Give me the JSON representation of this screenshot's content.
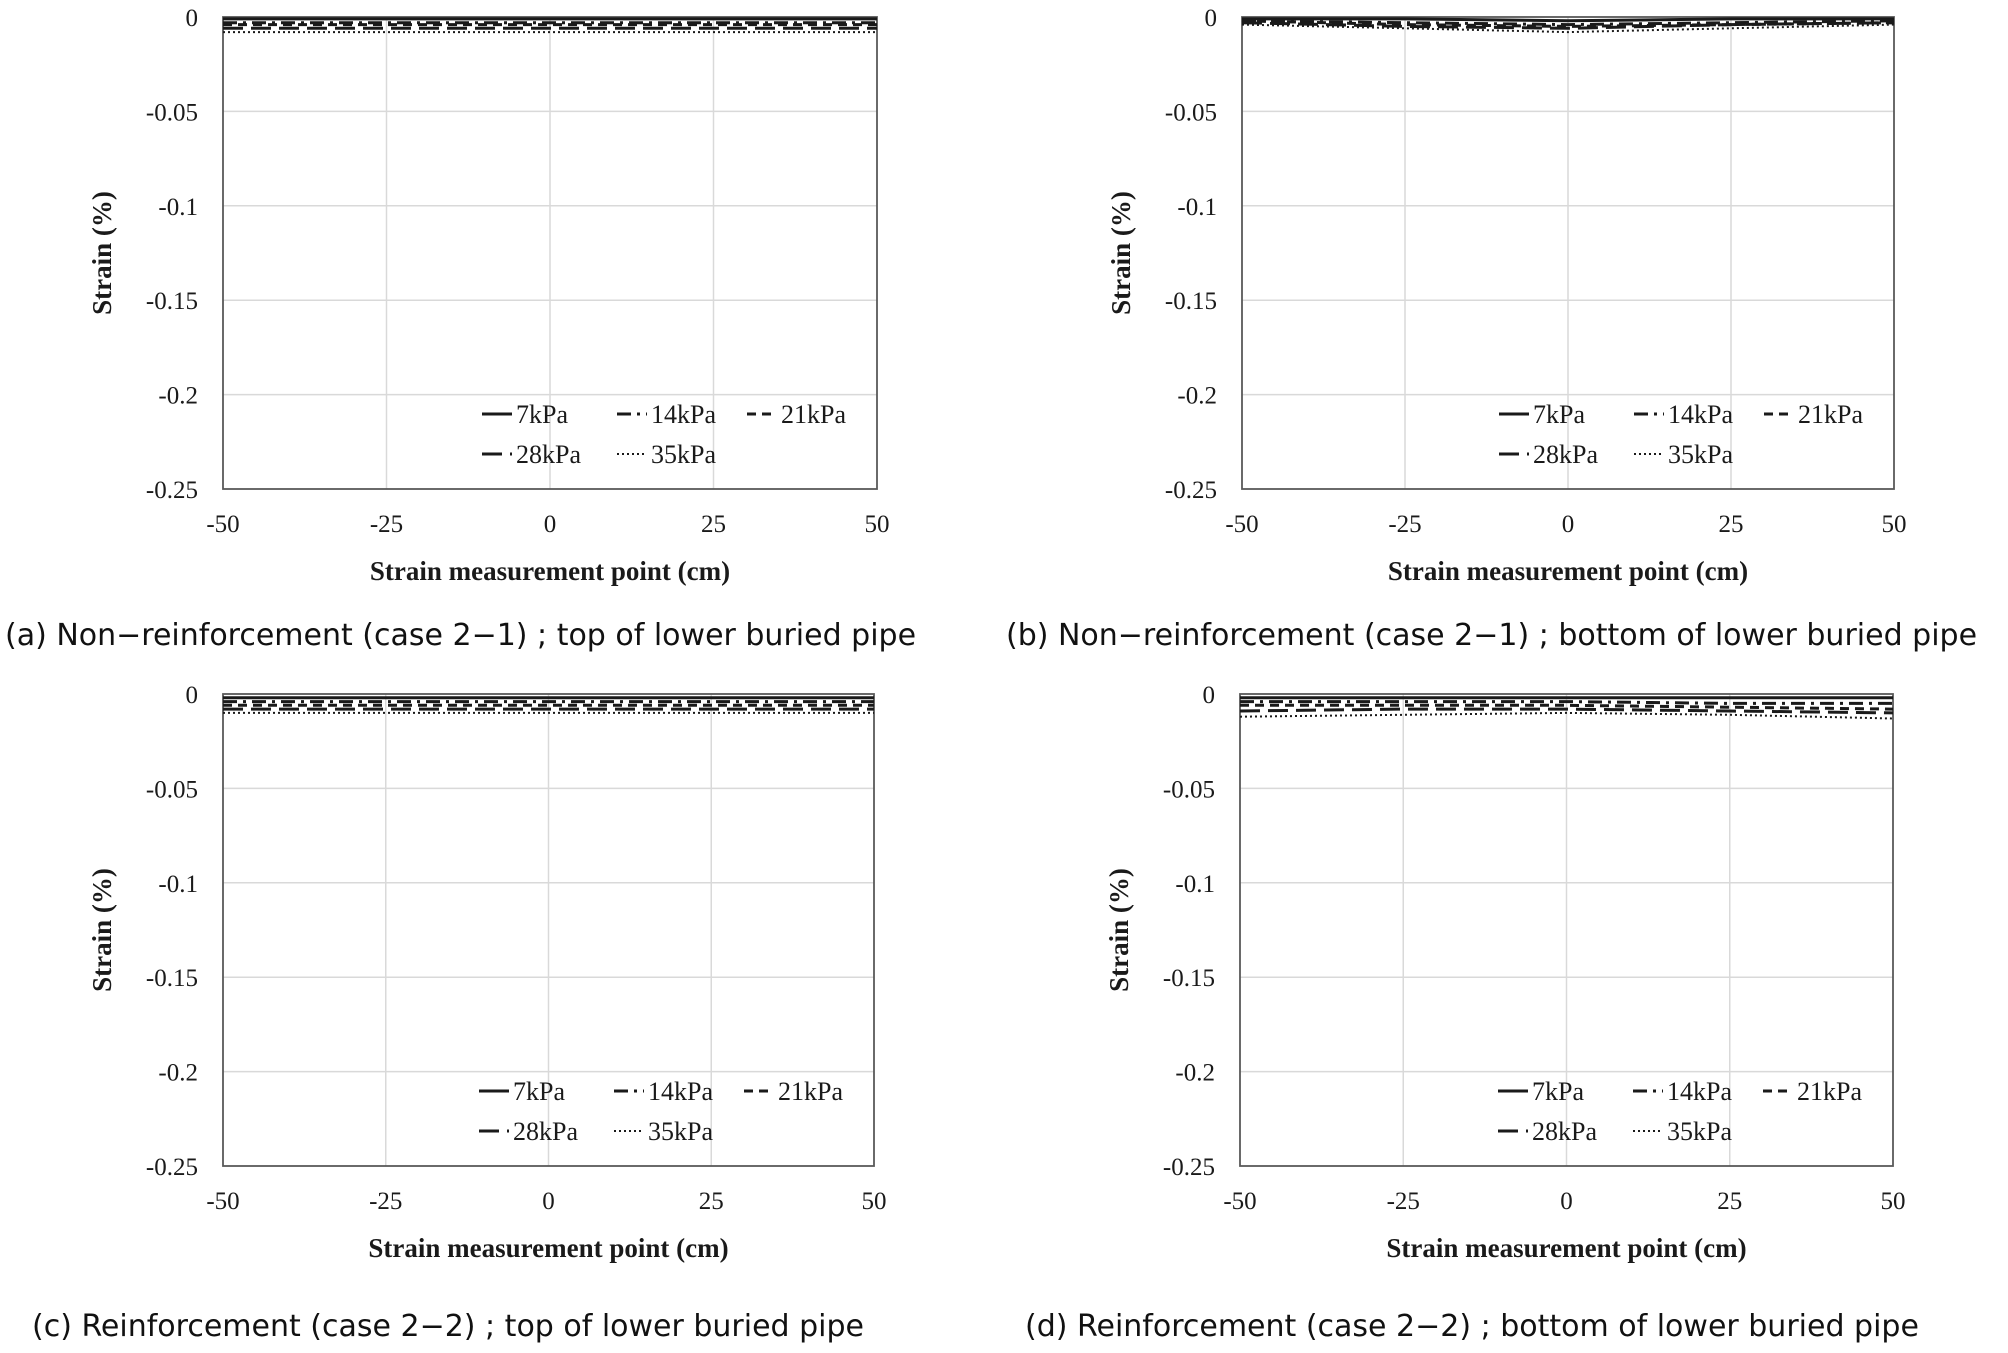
{
  "chart_data": [
    {
      "type": "line",
      "caption": "(a) Non−reinforcement (case 2−1) ; top of lower buried pipe",
      "xlabel": "Strain measurement point (cm)",
      "ylabel": "Strain (%)",
      "xlim": [
        -50,
        50
      ],
      "ylim": [
        -0.25,
        0
      ],
      "x_ticks": [
        "-50",
        "-25",
        "0",
        "25",
        "50"
      ],
      "y_ticks": [
        "0",
        "-0.05",
        "-0.1",
        "-0.15",
        "-0.2",
        "-0.25"
      ],
      "grid": true,
      "legend_position": "bottom-right",
      "x": [
        -50,
        -25,
        0,
        25,
        50
      ],
      "series": [
        {
          "name": "7kPa",
          "style": "solid",
          "values": [
            -0.001,
            -0.001,
            -0.001,
            -0.001,
            -0.001
          ]
        },
        {
          "name": "14kPa",
          "style": "dashdot",
          "values": [
            -0.003,
            -0.003,
            -0.003,
            -0.003,
            -0.003
          ]
        },
        {
          "name": "21kPa",
          "style": "dashed",
          "values": [
            -0.004,
            -0.004,
            -0.004,
            -0.004,
            -0.004
          ]
        },
        {
          "name": "28kPa",
          "style": "longdash",
          "values": [
            -0.006,
            -0.006,
            -0.006,
            -0.006,
            -0.006
          ]
        },
        {
          "name": "35kPa",
          "style": "dotted",
          "values": [
            -0.008,
            -0.008,
            -0.008,
            -0.008,
            -0.008
          ]
        }
      ]
    },
    {
      "type": "line",
      "caption": "(b) Non−reinforcement (case 2−1) ; bottom of lower buried pipe",
      "xlabel": "Strain measurement point (cm)",
      "ylabel": "Strain (%)",
      "xlim": [
        -50,
        50
      ],
      "ylim": [
        -0.25,
        0
      ],
      "x_ticks": [
        "-50",
        "-25",
        "0",
        "25",
        "50"
      ],
      "y_ticks": [
        "0",
        "-0.05",
        "-0.1",
        "-0.15",
        "-0.2",
        "-0.25"
      ],
      "grid": true,
      "legend_position": "bottom-right",
      "x": [
        -50,
        -25,
        0,
        25,
        50
      ],
      "series": [
        {
          "name": "7kPa",
          "style": "solid",
          "values": [
            -0.001,
            -0.001,
            -0.002,
            -0.001,
            -0.001
          ]
        },
        {
          "name": "14kPa",
          "style": "dashdot",
          "values": [
            -0.002,
            -0.003,
            -0.004,
            -0.003,
            -0.002
          ]
        },
        {
          "name": "21kPa",
          "style": "dashed",
          "values": [
            -0.002,
            -0.004,
            -0.005,
            -0.004,
            -0.003
          ]
        },
        {
          "name": "28kPa",
          "style": "longdash",
          "values": [
            -0.003,
            -0.005,
            -0.006,
            -0.004,
            -0.003
          ]
        },
        {
          "name": "35kPa",
          "style": "dotted",
          "values": [
            -0.004,
            -0.006,
            -0.008,
            -0.006,
            -0.004
          ]
        }
      ]
    },
    {
      "type": "line",
      "caption": "(c) Reinforcement (case 2−2) ; top of lower buried pipe",
      "xlabel": "Strain measurement point (cm)",
      "ylabel": "Strain (%)",
      "xlim": [
        -50,
        50
      ],
      "ylim": [
        -0.25,
        0
      ],
      "x_ticks": [
        "-50",
        "-25",
        "0",
        "25",
        "50"
      ],
      "y_ticks": [
        "0",
        "-0.05",
        "-0.1",
        "-0.15",
        "-0.2",
        "-0.25"
      ],
      "grid": true,
      "legend_position": "bottom-right",
      "x": [
        -50,
        -25,
        0,
        25,
        50
      ],
      "series": [
        {
          "name": "7kPa",
          "style": "solid",
          "values": [
            -0.002,
            -0.002,
            -0.002,
            -0.002,
            -0.002
          ]
        },
        {
          "name": "14kPa",
          "style": "dashdot",
          "values": [
            -0.004,
            -0.004,
            -0.004,
            -0.004,
            -0.004
          ]
        },
        {
          "name": "21kPa",
          "style": "dashed",
          "values": [
            -0.006,
            -0.006,
            -0.006,
            -0.006,
            -0.006
          ]
        },
        {
          "name": "28kPa",
          "style": "longdash",
          "values": [
            -0.008,
            -0.008,
            -0.008,
            -0.008,
            -0.008
          ]
        },
        {
          "name": "35kPa",
          "style": "dotted",
          "values": [
            -0.01,
            -0.01,
            -0.01,
            -0.01,
            -0.01
          ]
        }
      ]
    },
    {
      "type": "line",
      "caption": "(d) Reinforcement (case 2−2) ; bottom of lower buried pipe",
      "xlabel": "Strain measurement point (cm)",
      "ylabel": "Strain (%)",
      "xlim": [
        -50,
        50
      ],
      "ylim": [
        -0.25,
        0
      ],
      "x_ticks": [
        "-50",
        "-25",
        "0",
        "25",
        "50"
      ],
      "y_ticks": [
        "0",
        "-0.05",
        "-0.1",
        "-0.15",
        "-0.2",
        "-0.25"
      ],
      "grid": true,
      "legend_position": "bottom-right",
      "x": [
        -50,
        -25,
        0,
        25,
        50
      ],
      "series": [
        {
          "name": "7kPa",
          "style": "solid",
          "values": [
            -0.002,
            -0.002,
            -0.002,
            -0.002,
            -0.002
          ]
        },
        {
          "name": "14kPa",
          "style": "dashdot",
          "values": [
            -0.004,
            -0.004,
            -0.004,
            -0.005,
            -0.005
          ]
        },
        {
          "name": "21kPa",
          "style": "dashed",
          "values": [
            -0.006,
            -0.006,
            -0.006,
            -0.007,
            -0.008
          ]
        },
        {
          "name": "28kPa",
          "style": "longdash",
          "values": [
            -0.009,
            -0.008,
            -0.008,
            -0.009,
            -0.01
          ]
        },
        {
          "name": "35kPa",
          "style": "dotted",
          "values": [
            -0.012,
            -0.011,
            -0.01,
            -0.011,
            -0.013
          ]
        }
      ]
    }
  ],
  "colors": {
    "line": "#1a1a1a",
    "grid": "#d9d9d9",
    "axis": "#595959",
    "background": "#ffffff"
  }
}
